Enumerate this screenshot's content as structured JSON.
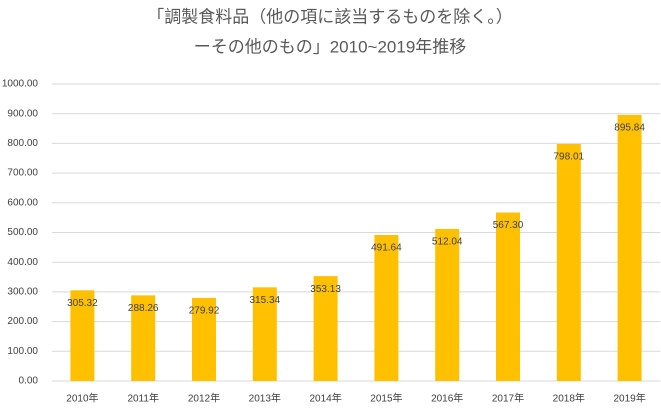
{
  "chart_data": {
    "type": "bar",
    "title": [
      "「調製食料品（他の項に該当するものを除く。）",
      "ーその他のもの」2010~2019年推移"
    ],
    "categories": [
      "2010年",
      "2011年",
      "2012年",
      "2013年",
      "2014年",
      "2015年",
      "2016年",
      "2017年",
      "2018年",
      "2019年"
    ],
    "values": [
      305.32,
      288.26,
      279.92,
      315.34,
      353.13,
      491.64,
      512.04,
      567.3,
      798.01,
      895.84
    ],
    "value_labels": [
      "305.32",
      "288.26",
      "279.92",
      "315.34",
      "353.13",
      "491.64",
      "512.04",
      "567.30",
      "798.01",
      "895.84"
    ],
    "color": "#ffc000",
    "ylim": [
      0,
      1000
    ],
    "yticks": [
      {
        "value": 0,
        "label": "0.00"
      },
      {
        "value": 100,
        "label": "100.00"
      },
      {
        "value": 200,
        "label": "200.00"
      },
      {
        "value": 300,
        "label": "300.00"
      },
      {
        "value": 400,
        "label": "400.00"
      },
      {
        "value": 500,
        "label": "500.00"
      },
      {
        "value": 600,
        "label": "600.00"
      },
      {
        "value": 700,
        "label": "700.00"
      },
      {
        "value": 800,
        "label": "800.00"
      },
      {
        "value": 900,
        "label": "900.00"
      },
      {
        "value": 1000,
        "label": "1000.00"
      }
    ],
    "grid": true
  }
}
